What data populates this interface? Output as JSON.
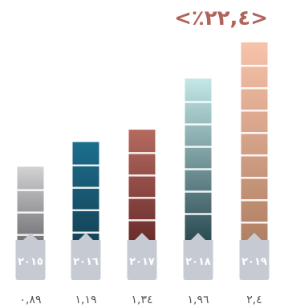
{
  "chart_data": {
    "type": "bar",
    "headline": "<٪٢٢,٤>",
    "categories": [
      "٢٠١٥",
      "٢٠١٦",
      "٢٠١٧",
      "٢٠١٨",
      "٢٠١٩"
    ],
    "values": [
      0.89,
      1.19,
      1.34,
      1.96,
      2.4
    ],
    "value_labels": [
      "٠,٨٩",
      "١,١٩",
      "١,٣٤",
      "١,٩٦",
      "٢,٤"
    ],
    "ylim": [
      0,
      2.4
    ],
    "grid": false,
    "legend": "none",
    "colors": [
      {
        "top": "#d2d2d4",
        "bottom": "#5f5f62"
      },
      {
        "top": "#1b6e8e",
        "bottom": "#143c4e"
      },
      {
        "top": "#b66a5f",
        "bottom": "#5e2424"
      },
      {
        "top": "#c3e8e6",
        "bottom": "#1c3b44"
      },
      {
        "top": "#f7c3aa",
        "bottom": "#aa7a5e"
      }
    ],
    "tab_color": "#c6cbd3",
    "headline_color": "#b0635a"
  }
}
